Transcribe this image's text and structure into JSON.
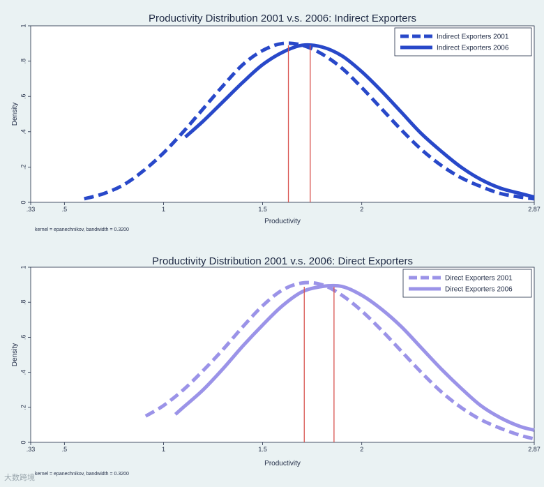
{
  "chart_data": [
    {
      "type": "line",
      "title": "Productivity Distribution 2001 v.s. 2006: Indirect Exporters",
      "xlabel": "Productivity",
      "ylabel": "Density",
      "note": "kernel = epanechnikov, bandwidth = 0.3200",
      "xlim": [
        0.33,
        2.87
      ],
      "ylim": [
        0,
        1
      ],
      "x_ticks": [
        0.33,
        0.5,
        1,
        1.5,
        2,
        2.87
      ],
      "x_tick_labels": [
        ".33",
        ".5",
        "1",
        "1.5",
        "2",
        "2.87"
      ],
      "y_ticks": [
        0,
        0.2,
        0.4,
        0.6,
        0.8,
        1
      ],
      "y_tick_labels": [
        "0",
        ".2",
        ".4",
        ".6",
        ".8",
        "1"
      ],
      "legend_position": "top-right",
      "vlines": [
        1.63,
        1.74
      ],
      "vline_color": "#d9534f",
      "series": [
        {
          "name": "Indirect Exporters 2001",
          "style": "dashed",
          "color": "#2848c9",
          "x": [
            0.6,
            0.7,
            0.8,
            0.9,
            1.0,
            1.1,
            1.2,
            1.3,
            1.4,
            1.5,
            1.6,
            1.7,
            1.8,
            1.9,
            2.0,
            2.1,
            2.2,
            2.3,
            2.4,
            2.5,
            2.6,
            2.7,
            2.8,
            2.87
          ],
          "y": [
            0.02,
            0.05,
            0.1,
            0.18,
            0.28,
            0.4,
            0.53,
            0.66,
            0.78,
            0.86,
            0.9,
            0.89,
            0.84,
            0.76,
            0.65,
            0.53,
            0.41,
            0.3,
            0.21,
            0.14,
            0.09,
            0.05,
            0.03,
            0.02
          ]
        },
        {
          "name": "Indirect Exporters 2006",
          "style": "solid",
          "color": "#2848c9",
          "x": [
            1.11,
            1.2,
            1.3,
            1.4,
            1.5,
            1.6,
            1.7,
            1.8,
            1.9,
            2.0,
            2.1,
            2.2,
            2.3,
            2.4,
            2.5,
            2.6,
            2.7,
            2.8,
            2.87
          ],
          "y": [
            0.37,
            0.46,
            0.57,
            0.68,
            0.78,
            0.85,
            0.89,
            0.88,
            0.83,
            0.74,
            0.63,
            0.51,
            0.39,
            0.29,
            0.2,
            0.13,
            0.08,
            0.05,
            0.03
          ]
        }
      ]
    },
    {
      "type": "line",
      "title": "Productivity Distribution 2001 v.s. 2006: Direct Exporters",
      "xlabel": "Productivity",
      "ylabel": "Density",
      "note": "kernel = epanechnikov, bandwidth = 0.3200",
      "xlim": [
        0.33,
        2.87
      ],
      "ylim": [
        0,
        1
      ],
      "x_ticks": [
        0.33,
        0.5,
        1,
        1.5,
        2,
        2.87
      ],
      "x_tick_labels": [
        ".33",
        ".5",
        "1",
        "1.5",
        "2",
        "2.87"
      ],
      "y_ticks": [
        0,
        0.2,
        0.4,
        0.6,
        0.8,
        1
      ],
      "y_tick_labels": [
        "0",
        ".2",
        ".4",
        ".6",
        ".8",
        "1"
      ],
      "legend_position": "top-right",
      "vlines": [
        1.71,
        1.86
      ],
      "vline_color": "#d9534f",
      "series": [
        {
          "name": "Direct Exporters 2001",
          "style": "dashed",
          "color": "#9b93e8",
          "x": [
            0.91,
            1.0,
            1.1,
            1.2,
            1.3,
            1.4,
            1.5,
            1.6,
            1.7,
            1.8,
            1.9,
            2.0,
            2.1,
            2.2,
            2.3,
            2.4,
            2.5,
            2.6,
            2.7,
            2.8,
            2.87
          ],
          "y": [
            0.15,
            0.21,
            0.3,
            0.41,
            0.53,
            0.66,
            0.78,
            0.87,
            0.91,
            0.9,
            0.84,
            0.75,
            0.64,
            0.52,
            0.4,
            0.29,
            0.2,
            0.13,
            0.08,
            0.04,
            0.02
          ]
        },
        {
          "name": "Direct Exporters 2006",
          "style": "solid",
          "color": "#9b93e8",
          "x": [
            1.06,
            1.1,
            1.2,
            1.3,
            1.4,
            1.5,
            1.6,
            1.7,
            1.8,
            1.9,
            2.0,
            2.1,
            2.2,
            2.3,
            2.4,
            2.5,
            2.6,
            2.7,
            2.8,
            2.87
          ],
          "y": [
            0.16,
            0.2,
            0.3,
            0.42,
            0.55,
            0.67,
            0.78,
            0.86,
            0.89,
            0.89,
            0.84,
            0.76,
            0.66,
            0.54,
            0.42,
            0.31,
            0.21,
            0.14,
            0.09,
            0.07
          ]
        }
      ]
    }
  ],
  "watermark": "大数跨境"
}
